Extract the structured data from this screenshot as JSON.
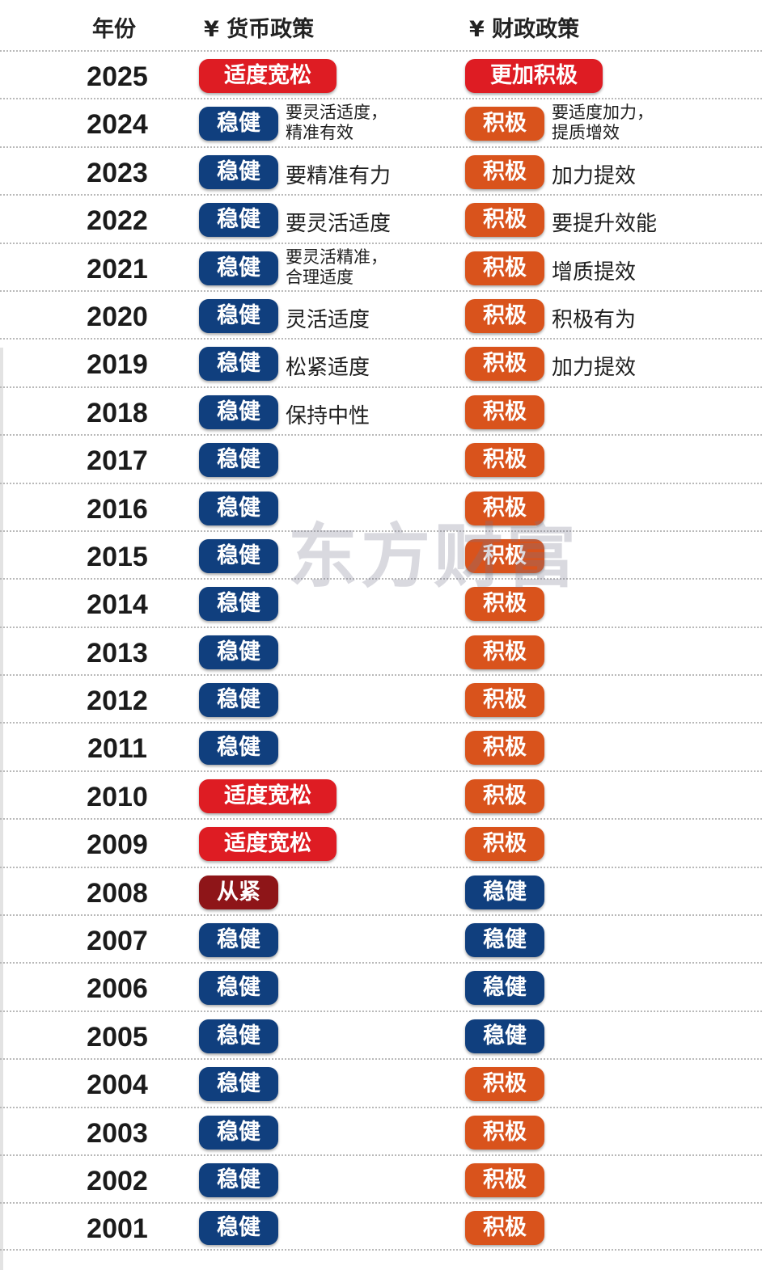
{
  "header": {
    "year_label": "年份",
    "monetary_label": "¥ 货币政策",
    "fiscal_label": "¥ 财政政策"
  },
  "watermark": "东方财富",
  "colors": {
    "stable_blue": "#103f7e",
    "proactive_orange": "#d9531c",
    "loose_red": "#de1c23",
    "tight_darkred": "#8e1518"
  },
  "rows": [
    {
      "year": "2025",
      "monetary": "适度宽松",
      "monetary_color": "red",
      "monetary_note": "",
      "fiscal": "更加积极",
      "fiscal_color": "red",
      "fiscal_note": ""
    },
    {
      "year": "2024",
      "monetary": "稳健",
      "monetary_color": "blue",
      "monetary_note": "要灵活适度，\n精准有效",
      "fiscal": "积极",
      "fiscal_color": "orange",
      "fiscal_note": "要适度加力，\n提质增效"
    },
    {
      "year": "2023",
      "monetary": "稳健",
      "monetary_color": "blue",
      "monetary_note": "要精准有力",
      "fiscal": "积极",
      "fiscal_color": "orange",
      "fiscal_note": "加力提效"
    },
    {
      "year": "2022",
      "monetary": "稳健",
      "monetary_color": "blue",
      "monetary_note": "要灵活适度",
      "fiscal": "积极",
      "fiscal_color": "orange",
      "fiscal_note": "要提升效能"
    },
    {
      "year": "2021",
      "monetary": "稳健",
      "monetary_color": "blue",
      "monetary_note": "要灵活精准，\n合理适度",
      "fiscal": "积极",
      "fiscal_color": "orange",
      "fiscal_note": "增质提效"
    },
    {
      "year": "2020",
      "monetary": "稳健",
      "monetary_color": "blue",
      "monetary_note": "灵活适度",
      "fiscal": "积极",
      "fiscal_color": "orange",
      "fiscal_note": "积极有为"
    },
    {
      "year": "2019",
      "monetary": "稳健",
      "monetary_color": "blue",
      "monetary_note": "松紧适度",
      "fiscal": "积极",
      "fiscal_color": "orange",
      "fiscal_note": "加力提效"
    },
    {
      "year": "2018",
      "monetary": "稳健",
      "monetary_color": "blue",
      "monetary_note": "保持中性",
      "fiscal": "积极",
      "fiscal_color": "orange",
      "fiscal_note": ""
    },
    {
      "year": "2017",
      "monetary": "稳健",
      "monetary_color": "blue",
      "monetary_note": "",
      "fiscal": "积极",
      "fiscal_color": "orange",
      "fiscal_note": ""
    },
    {
      "year": "2016",
      "monetary": "稳健",
      "monetary_color": "blue",
      "monetary_note": "",
      "fiscal": "积极",
      "fiscal_color": "orange",
      "fiscal_note": ""
    },
    {
      "year": "2015",
      "monetary": "稳健",
      "monetary_color": "blue",
      "monetary_note": "",
      "fiscal": "积极",
      "fiscal_color": "orange",
      "fiscal_note": ""
    },
    {
      "year": "2014",
      "monetary": "稳健",
      "monetary_color": "blue",
      "monetary_note": "",
      "fiscal": "积极",
      "fiscal_color": "orange",
      "fiscal_note": ""
    },
    {
      "year": "2013",
      "monetary": "稳健",
      "monetary_color": "blue",
      "monetary_note": "",
      "fiscal": "积极",
      "fiscal_color": "orange",
      "fiscal_note": ""
    },
    {
      "year": "2012",
      "monetary": "稳健",
      "monetary_color": "blue",
      "monetary_note": "",
      "fiscal": "积极",
      "fiscal_color": "orange",
      "fiscal_note": ""
    },
    {
      "year": "2011",
      "monetary": "稳健",
      "monetary_color": "blue",
      "monetary_note": "",
      "fiscal": "积极",
      "fiscal_color": "orange",
      "fiscal_note": ""
    },
    {
      "year": "2010",
      "monetary": "适度宽松",
      "monetary_color": "red",
      "monetary_note": "",
      "fiscal": "积极",
      "fiscal_color": "orange",
      "fiscal_note": ""
    },
    {
      "year": "2009",
      "monetary": "适度宽松",
      "monetary_color": "red",
      "monetary_note": "",
      "fiscal": "积极",
      "fiscal_color": "orange",
      "fiscal_note": ""
    },
    {
      "year": "2008",
      "monetary": "从紧",
      "monetary_color": "darkred",
      "monetary_note": "",
      "fiscal": "稳健",
      "fiscal_color": "blue",
      "fiscal_note": ""
    },
    {
      "year": "2007",
      "monetary": "稳健",
      "monetary_color": "blue",
      "monetary_note": "",
      "fiscal": "稳健",
      "fiscal_color": "blue",
      "fiscal_note": ""
    },
    {
      "year": "2006",
      "monetary": "稳健",
      "monetary_color": "blue",
      "monetary_note": "",
      "fiscal": "稳健",
      "fiscal_color": "blue",
      "fiscal_note": ""
    },
    {
      "year": "2005",
      "monetary": "稳健",
      "monetary_color": "blue",
      "monetary_note": "",
      "fiscal": "稳健",
      "fiscal_color": "blue",
      "fiscal_note": ""
    },
    {
      "year": "2004",
      "monetary": "稳健",
      "monetary_color": "blue",
      "monetary_note": "",
      "fiscal": "积极",
      "fiscal_color": "orange",
      "fiscal_note": ""
    },
    {
      "year": "2003",
      "monetary": "稳健",
      "monetary_color": "blue",
      "monetary_note": "",
      "fiscal": "积极",
      "fiscal_color": "orange",
      "fiscal_note": ""
    },
    {
      "year": "2002",
      "monetary": "稳健",
      "monetary_color": "blue",
      "monetary_note": "",
      "fiscal": "积极",
      "fiscal_color": "orange",
      "fiscal_note": ""
    },
    {
      "year": "2001",
      "monetary": "稳健",
      "monetary_color": "blue",
      "monetary_note": "",
      "fiscal": "积极",
      "fiscal_color": "orange",
      "fiscal_note": ""
    }
  ]
}
